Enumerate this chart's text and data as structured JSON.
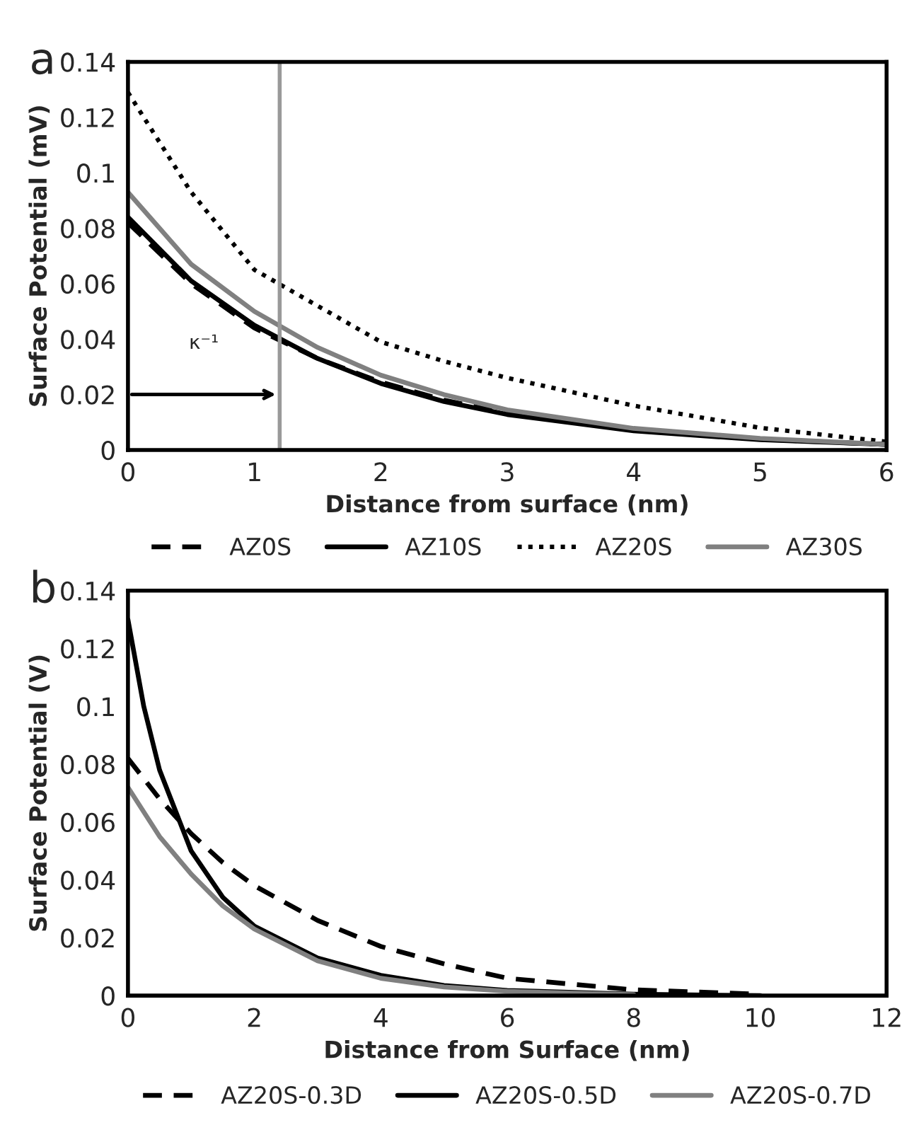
{
  "chart_data": [
    {
      "type": "line",
      "title": "a",
      "xlabel": "Distance from surface (nm)",
      "ylabel": "Surface Potential (mV)",
      "x": [
        0,
        0.5,
        1,
        1.5,
        2,
        2.5,
        3,
        4,
        5,
        6
      ],
      "series": [
        {
          "name": "AZ0S",
          "color": "#000000",
          "line_style": "dashed",
          "values": [
            0.082,
            0.06,
            0.044,
            0.033,
            0.0245,
            0.018,
            0.0132,
            0.0072,
            0.0039,
            0.002
          ]
        },
        {
          "name": "AZ10S",
          "color": "#000000",
          "line_style": "solid",
          "values": [
            0.084,
            0.061,
            0.045,
            0.033,
            0.024,
            0.0175,
            0.0128,
            0.0069,
            0.0037,
            0.002
          ]
        },
        {
          "name": "AZ20S",
          "color": "#000000",
          "line_style": "dotted",
          "values": [
            0.129,
            0.093,
            0.065,
            0.052,
            0.039,
            0.032,
            0.026,
            0.016,
            0.008,
            0.003
          ]
        },
        {
          "name": "AZ30S",
          "color": "#808080",
          "line_style": "solid",
          "values": [
            0.093,
            0.067,
            0.05,
            0.037,
            0.027,
            0.02,
            0.0145,
            0.0078,
            0.0042,
            0.002
          ]
        }
      ],
      "xlim": [
        0,
        6
      ],
      "xticks": [
        0,
        1,
        2,
        3,
        4,
        5,
        6
      ],
      "ylim": [
        0,
        0.14
      ],
      "yticks": [
        0,
        0.02,
        0.04,
        0.06,
        0.08,
        0.1,
        0.12,
        0.14
      ],
      "ref_lines": [
        {
          "axis": "x",
          "value": 1.2,
          "color": "#999999"
        }
      ],
      "annotations": [
        "κ⁻¹"
      ],
      "legend": "bottom",
      "grid": false,
      "marker": "none"
    },
    {
      "type": "line",
      "title": "b",
      "xlabel": "Distance from Surface (nm)",
      "ylabel": "Surface Potential (V)",
      "series": [
        {
          "name": "AZ20S-0.3D",
          "color": "#000000",
          "line_style": "dashed",
          "x": [
            0,
            0.5,
            1,
            1.5,
            2,
            3,
            4,
            5,
            6,
            7,
            8,
            10
          ],
          "values": [
            0.082,
            0.068,
            0.056,
            0.046,
            0.038,
            0.026,
            0.017,
            0.011,
            0.006,
            0.004,
            0.002,
            0.0005
          ]
        },
        {
          "name": "AZ20S-0.5D",
          "color": "#000000",
          "line_style": "solid",
          "x": [
            0,
            0.25,
            0.5,
            1,
            1.5,
            2,
            3,
            4,
            5,
            6,
            8,
            10
          ],
          "values": [
            0.13,
            0.1,
            0.078,
            0.05,
            0.034,
            0.024,
            0.013,
            0.007,
            0.0035,
            0.0018,
            0.0005,
            0
          ]
        },
        {
          "name": "AZ20S-0.7D",
          "color": "#808080",
          "line_style": "solid",
          "x": [
            0,
            0.5,
            1,
            1.5,
            2,
            3,
            4,
            5,
            6,
            8
          ],
          "values": [
            0.072,
            0.055,
            0.042,
            0.031,
            0.023,
            0.012,
            0.006,
            0.003,
            0.0015,
            0.0003
          ]
        }
      ],
      "xlim": [
        0,
        12
      ],
      "xticks": [
        0,
        2,
        4,
        6,
        8,
        10,
        12
      ],
      "ylim": [
        0,
        0.14
      ],
      "yticks": [
        0,
        0.02,
        0.04,
        0.06,
        0.08,
        0.1,
        0.12,
        0.14
      ],
      "legend": "bottom",
      "grid": false,
      "marker": "none"
    }
  ]
}
